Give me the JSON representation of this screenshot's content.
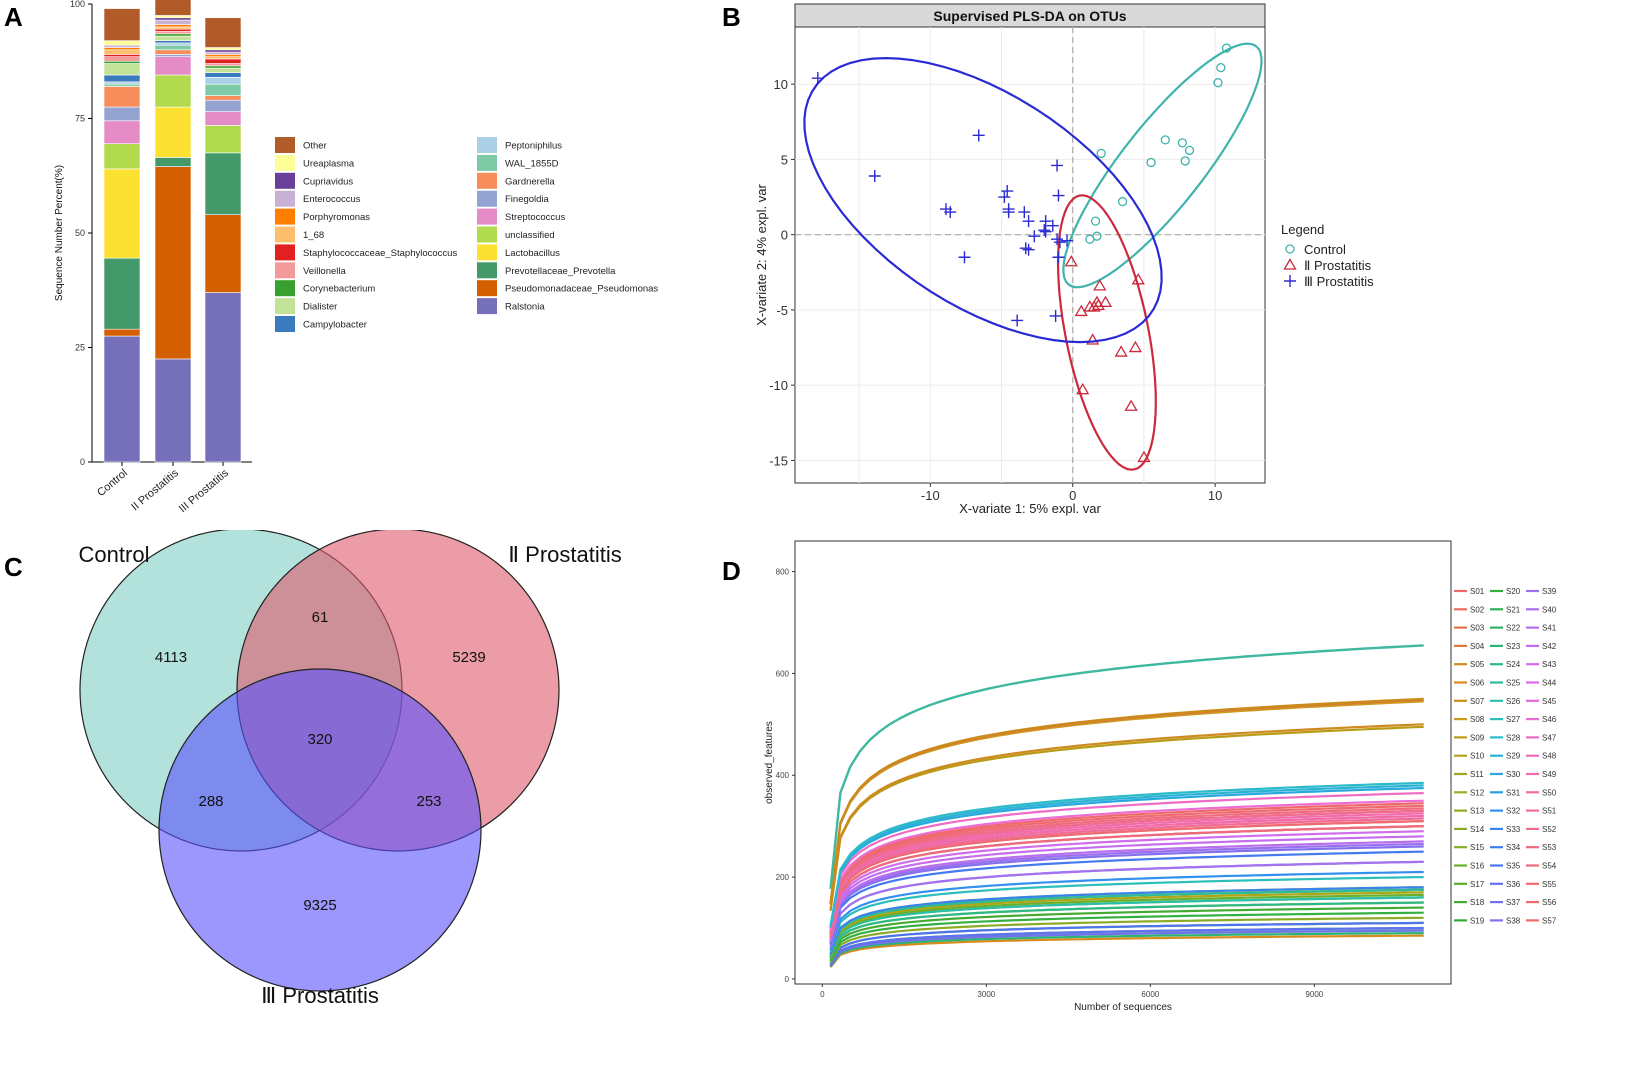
{
  "panels": {
    "a": "A",
    "b": "B",
    "c": "C",
    "d": "D"
  },
  "chart_data": [
    {
      "type": "bar",
      "stacked": true,
      "ylabel": "Sequence Number Percent(%)",
      "ylim": [
        0,
        100
      ],
      "yticks": [
        "0",
        "25",
        "50",
        "75",
        "100"
      ],
      "categories": [
        "Control",
        "II Prostatitis",
        "III Prostatitis"
      ],
      "legend_order": [
        "Other",
        "Ureaplasma",
        "Cupriavidus",
        "Enterococcus",
        "Porphyromonas",
        "1_68",
        "Staphylococcaceae_Staphylococcus",
        "Veillonella",
        "Corynebacterium",
        "Dialister",
        "Campylobacter",
        "Peptoniphilus",
        "WAL_1855D",
        "Gardnerella",
        "Finegoldia",
        "Streptococcus",
        "unclassified",
        "Lactobacillus",
        "Prevotellaceae_Prevotella",
        "Pseudomonadaceae_Pseudomonas",
        "Ralstonia"
      ],
      "series": [
        {
          "name": "Ralstonia",
          "color": "#7570b9",
          "values": [
            27.5,
            22.5,
            37.0
          ]
        },
        {
          "name": "Pseudomonadaceae_Pseudomonas",
          "color": "#d45f00",
          "values": [
            1.5,
            42.0,
            17.0
          ]
        },
        {
          "name": "Prevotellaceae_Prevotella",
          "color": "#44996a",
          "values": [
            15.5,
            2.0,
            13.5
          ]
        },
        {
          "name": "Lactobacillus",
          "color": "#fde132",
          "values": [
            19.5,
            11.0,
            0.0
          ]
        },
        {
          "name": "unclassified",
          "color": "#b2da4e",
          "values": [
            5.5,
            7.0,
            6.0
          ]
        },
        {
          "name": "Streptococcus",
          "color": "#e58bc6",
          "values": [
            5.0,
            4.0,
            3.0
          ]
        },
        {
          "name": "Finegoldia",
          "color": "#95a3d1",
          "values": [
            3.0,
            0.5,
            2.5
          ]
        },
        {
          "name": "Gardnerella",
          "color": "#f78d5b",
          "values": [
            4.5,
            1.0,
            1.0
          ]
        },
        {
          "name": "WAL_1855D",
          "color": "#7fcaa6",
          "values": [
            0.5,
            1.0,
            2.5
          ]
        },
        {
          "name": "Peptoniphilus",
          "color": "#aacfe6",
          "values": [
            0.5,
            0.5,
            1.5
          ]
        },
        {
          "name": "Campylobacter",
          "color": "#3a7bbe",
          "values": [
            1.5,
            0.5,
            1.0
          ]
        },
        {
          "name": "Dialister",
          "color": "#c3e39a",
          "values": [
            2.5,
            1.0,
            1.0
          ]
        },
        {
          "name": "Corynebacterium",
          "color": "#38a02e",
          "values": [
            0.5,
            0.5,
            0.5
          ]
        },
        {
          "name": "Veillonella",
          "color": "#f39a9a",
          "values": [
            1.0,
            0.5,
            0.5
          ]
        },
        {
          "name": "Staphylococcaceae_Staphylococcus",
          "color": "#e2201f",
          "values": [
            0.5,
            0.5,
            1.0
          ]
        },
        {
          "name": "1_68",
          "color": "#fdbf6e",
          "values": [
            1.0,
            0.5,
            0.5
          ]
        },
        {
          "name": "Porphyromonas",
          "color": "#fe7f00",
          "values": [
            0.5,
            0.5,
            0.5
          ]
        },
        {
          "name": "Enterococcus",
          "color": "#c9b1d5",
          "values": [
            0.5,
            1.0,
            0.5
          ]
        },
        {
          "name": "Cupriavidus",
          "color": "#6a3f99",
          "values": [
            0.0,
            0.5,
            0.5
          ]
        },
        {
          "name": "Ureaplasma",
          "color": "#fdfd9a",
          "values": [
            1.0,
            0.5,
            0.5
          ]
        },
        {
          "name": "Other",
          "color": "#b05b28",
          "values": [
            7.0,
            3.5,
            6.5
          ]
        }
      ]
    },
    {
      "type": "scatter",
      "title": "Supervised PLS-DA on OTUs",
      "xlabel": "X-variate 1: 5% expl. var",
      "ylabel": "X-variate 2: 4% expl. var",
      "xlim": [
        -19.5,
        13.5
      ],
      "ylim": [
        -16.5,
        13.8
      ],
      "xticks": [
        -10,
        0,
        10
      ],
      "yticks": [
        -15,
        -10,
        -5,
        0,
        5,
        10
      ],
      "legend_title": "Legend",
      "series": [
        {
          "name": "Control",
          "marker": "circle",
          "color": "#3fb3ad",
          "ellipse": {
            "cx": 6.3,
            "cy": 4.6,
            "rx": 10.3,
            "ry": 2.8,
            "angle": 50
          },
          "points": [
            [
              10.8,
              12.4
            ],
            [
              10.4,
              11.1
            ],
            [
              10.2,
              10.1
            ],
            [
              6.5,
              6.3
            ],
            [
              7.7,
              6.1
            ],
            [
              8.2,
              5.6
            ],
            [
              2.0,
              5.4
            ],
            [
              7.9,
              4.9
            ],
            [
              5.5,
              4.8
            ],
            [
              3.5,
              2.2
            ],
            [
              1.6,
              0.9
            ],
            [
              1.2,
              -0.3
            ],
            [
              1.7,
              -0.1
            ]
          ]
        },
        {
          "name": "Ⅱ Prostatitis",
          "marker": "triangle",
          "color": "#cc2a3c",
          "ellipse": {
            "cx": 2.4,
            "cy": -6.5,
            "rx": 9.3,
            "ry": 2.9,
            "angle": -78
          },
          "points": [
            [
              -0.1,
              -1.8
            ],
            [
              1.9,
              -3.4
            ],
            [
              4.6,
              -3.0
            ],
            [
              1.7,
              -4.5
            ],
            [
              2.3,
              -4.5
            ],
            [
              1.2,
              -4.8
            ],
            [
              1.5,
              -4.8
            ],
            [
              0.6,
              -5.1
            ],
            [
              1.8,
              -4.7
            ],
            [
              1.4,
              -7.0
            ],
            [
              3.4,
              -7.8
            ],
            [
              4.4,
              -7.5
            ],
            [
              0.7,
              -10.3
            ],
            [
              4.1,
              -11.4
            ],
            [
              5.0,
              -14.8
            ]
          ]
        },
        {
          "name": "Ⅲ Prostatitis",
          "marker": "plus",
          "color": "#2b2bd4",
          "ellipse": {
            "cx": -6.3,
            "cy": 2.3,
            "rx": 14.0,
            "ry": 7.1,
            "angle": -31
          },
          "points": [
            [
              -17.9,
              10.4
            ],
            [
              -13.9,
              3.9
            ],
            [
              -6.6,
              6.6
            ],
            [
              -1.1,
              4.6
            ],
            [
              -1.0,
              2.6
            ],
            [
              -4.6,
              2.9
            ],
            [
              -4.8,
              2.5
            ],
            [
              -3.4,
              1.5
            ],
            [
              -4.5,
              1.7
            ],
            [
              -4.5,
              1.5
            ],
            [
              -8.9,
              1.7
            ],
            [
              -8.6,
              1.5
            ],
            [
              -3.1,
              0.9
            ],
            [
              -1.9,
              0.9
            ],
            [
              -1.4,
              0.6
            ],
            [
              -2.0,
              0.3
            ],
            [
              -1.9,
              0.2
            ],
            [
              -2.7,
              -0.1
            ],
            [
              -1.1,
              -0.3
            ],
            [
              -0.9,
              -0.5
            ],
            [
              -0.4,
              -0.4
            ],
            [
              -3.3,
              -0.9
            ],
            [
              -3.1,
              -1.0
            ],
            [
              -7.6,
              -1.5
            ],
            [
              -1.0,
              -1.5
            ],
            [
              -3.9,
              -5.7
            ],
            [
              -1.2,
              -5.4
            ]
          ]
        }
      ]
    },
    {
      "type": "venn",
      "sets": [
        {
          "name": "Control",
          "color": "#7fcfc3"
        },
        {
          "name": "Ⅱ Prostatitis",
          "color": "#df5a6c"
        },
        {
          "name": "Ⅲ Prostatitis",
          "color": "#5a52fb"
        }
      ],
      "regions": [
        {
          "sets": [
            "Control"
          ],
          "value": "4113"
        },
        {
          "sets": [
            "Control",
            "Ⅱ Prostatitis"
          ],
          "value": "61"
        },
        {
          "sets": [
            "Ⅱ Prostatitis"
          ],
          "value": "5239"
        },
        {
          "sets": [
            "Control",
            "Ⅱ Prostatitis",
            "Ⅲ Prostatitis"
          ],
          "value": "320"
        },
        {
          "sets": [
            "Control",
            "Ⅲ Prostatitis"
          ],
          "value": "288"
        },
        {
          "sets": [
            "Ⅱ Prostatitis",
            "Ⅲ Prostatitis"
          ],
          "value": "253"
        },
        {
          "sets": [
            "Ⅲ Prostatitis"
          ],
          "value": "9325"
        }
      ]
    },
    {
      "type": "line",
      "title": "",
      "xlabel": "Number of sequences",
      "ylabel": "observed_features",
      "xlim": [
        -500,
        11500
      ],
      "ylim": [
        -10,
        860
      ],
      "xticks": [
        0,
        3000,
        6000,
        9000
      ],
      "yticks": [
        0,
        200,
        400,
        600,
        800
      ],
      "x_start": 150,
      "x_end": 11000,
      "sample_names": [
        "S01",
        "S02",
        "S03",
        "S04",
        "S05",
        "S06",
        "S07",
        "S08",
        "S09",
        "S10",
        "S11",
        "S12",
        "S13",
        "S14",
        "S15",
        "S16",
        "S17",
        "S18",
        "S19",
        "S20",
        "S21",
        "S22",
        "S23",
        "S24",
        "S25",
        "S26",
        "S27",
        "S28",
        "S29",
        "S30",
        "S31",
        "S32",
        "S33",
        "S34",
        "S35",
        "S36",
        "S37",
        "S38",
        "S39",
        "S40",
        "S41",
        "S42",
        "S43",
        "S44",
        "S45",
        "S46",
        "S47",
        "S48",
        "S49",
        "S50",
        "S51",
        "S52",
        "S53",
        "S54",
        "S55",
        "S56",
        "S57"
      ],
      "sample_colors": [
        "#ee6a6a",
        "#ec6d5e",
        "#e5714c",
        "#df7838",
        "#ce8a1e",
        "#d98a1e",
        "#c98c1a",
        "#ca9b1d",
        "#b89c17",
        "#b0a518",
        "#a4a41c",
        "#a0ab22",
        "#93ac24",
        "#8bab26",
        "#7fb026",
        "#6ab02a",
        "#5aac2c",
        "#44aa32",
        "#36a93a",
        "#32b042",
        "#2fb152",
        "#2db463",
        "#2cb476",
        "#2cb987",
        "#2cbd99",
        "#2cbfaa",
        "#2bbfbb",
        "#2bbac9",
        "#2bb3d4",
        "#2aa8dd",
        "#2a9fe2",
        "#3290ee",
        "#3784ef",
        "#437af0",
        "#4d74f0",
        "#6071ef",
        "#7470ee",
        "#846fed",
        "#9970ee",
        "#a86fee",
        "#b86eed",
        "#c66dee",
        "#d06dec",
        "#dc6ce6",
        "#e56ce0",
        "#ec6cd4",
        "#ef6cc6",
        "#f06cbb",
        "#f16cae",
        "#f16ca3",
        "#f06c96",
        "#ef6c8c",
        "#ef6b80",
        "#ee6b78",
        "#ee6b72",
        "#ee6a6e",
        "#ee6a6a"
      ],
      "final_values": [
        330,
        310,
        300,
        548,
        500,
        85,
        550,
        545,
        495,
        170,
        175,
        180,
        150,
        120,
        110,
        165,
        175,
        140,
        160,
        130,
        100,
        95,
        90,
        150,
        175,
        160,
        200,
        385,
        380,
        375,
        230,
        210,
        180,
        250,
        110,
        100,
        95,
        260,
        265,
        230,
        270,
        280,
        290,
        320,
        300,
        350,
        365,
        330,
        325,
        320,
        315,
        330,
        335,
        300,
        310,
        340,
        345
      ],
      "highlight_series": [
        {
          "name": "teal-top",
          "color": "#3fb8a0",
          "final_value": 655
        }
      ]
    }
  ]
}
